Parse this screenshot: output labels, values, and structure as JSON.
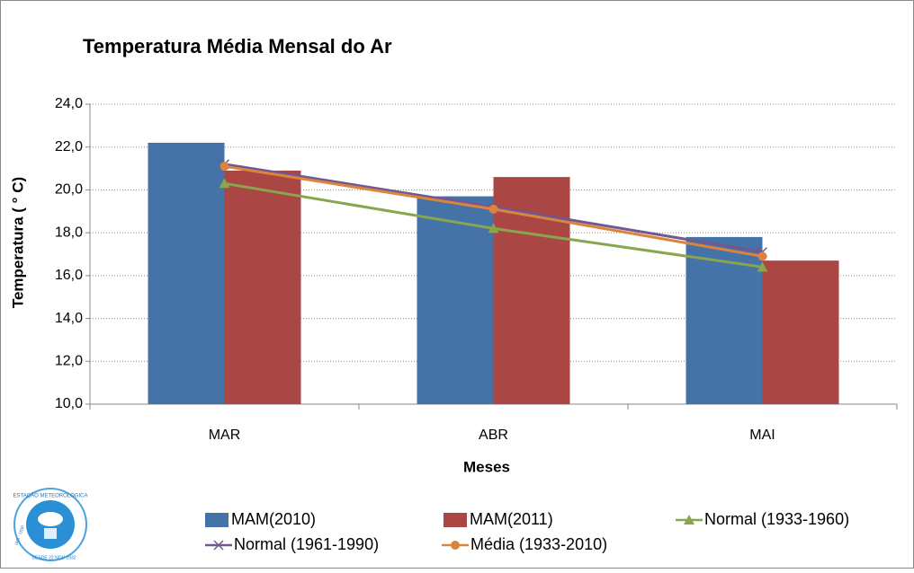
{
  "chart_data": {
    "type": "bar",
    "title": "Temperatura Média Mensal do Ar",
    "x_label": "Meses",
    "y_label": "Temperatura ( ° C)",
    "categories": [
      "MAR",
      "ABR",
      "MAI"
    ],
    "series": [
      {
        "name": "MAM(2010)",
        "type": "bar",
        "color": "#4572a7",
        "values": [
          22.2,
          19.7,
          17.8
        ]
      },
      {
        "name": "MAM(2011)",
        "type": "bar",
        "color": "#aa4643",
        "values": [
          20.9,
          20.6,
          16.7
        ]
      },
      {
        "name": "Normal (1933-1960)",
        "type": "line",
        "marker": "triangle",
        "color": "#89a54e",
        "values": [
          20.3,
          18.2,
          16.4
        ]
      },
      {
        "name": "Normal (1961-1990)",
        "type": "line",
        "marker": "x",
        "color": "#71588f",
        "values": [
          21.2,
          19.2,
          17.1
        ]
      },
      {
        "name": "Média (1933-2010)",
        "type": "line",
        "marker": "circle",
        "color": "#db843d",
        "values": [
          21.1,
          19.1,
          16.9
        ]
      }
    ],
    "ylim": [
      10,
      24
    ],
    "yticks": [
      {
        "value": 10,
        "label": "10,0"
      },
      {
        "value": 12,
        "label": "12,0"
      },
      {
        "value": 14,
        "label": "14,0"
      },
      {
        "value": 16,
        "label": "16,0"
      },
      {
        "value": 18,
        "label": "18,0"
      },
      {
        "value": 20,
        "label": "20,0"
      },
      {
        "value": 22,
        "label": "22,0"
      },
      {
        "value": 24,
        "label": "24,0"
      }
    ],
    "grid": true,
    "legend": "bottom"
  },
  "logo": {
    "top_text": "ESTAÇÃO METEOROLÓGICA",
    "left_text": "IAG · USP",
    "bottom_text": "DESDE 22 NOV 1932"
  }
}
